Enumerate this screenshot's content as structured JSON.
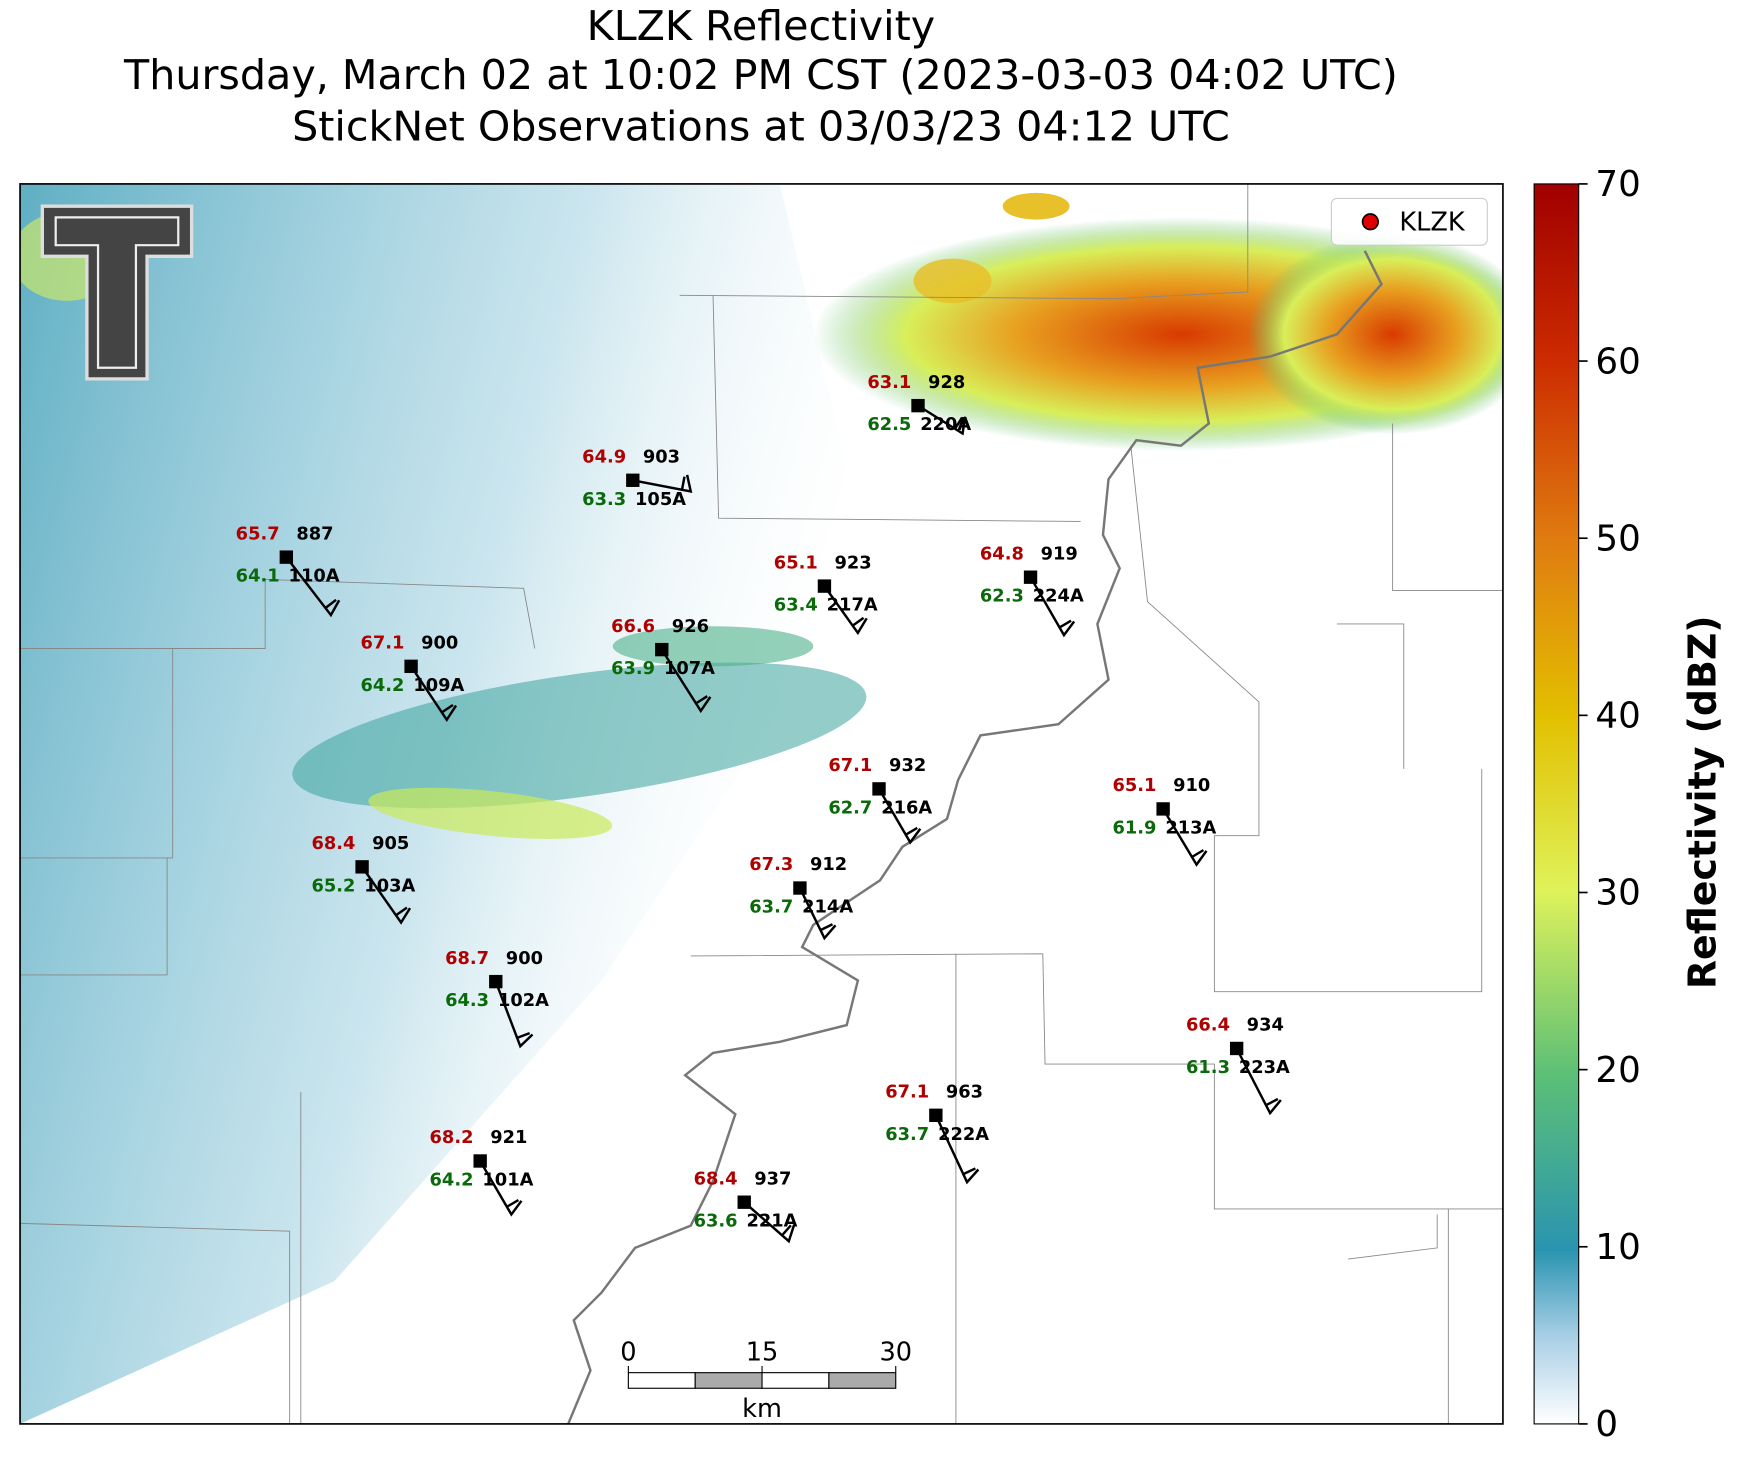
{
  "title": [
    "KLZK Reflectivity",
    "Thursday, March 02 at 10:02 PM CST (2023-03-03 04:02 UTC)",
    "StickNet Observations at 03/03/23 04:12 UTC"
  ],
  "legend": {
    "label": "KLZK"
  },
  "colorbar": {
    "label": "Reflectivity (dBZ)",
    "lim": [
      0,
      70
    ],
    "ticks": [
      0,
      10,
      20,
      30,
      40,
      50,
      60,
      70
    ]
  },
  "scalebar": {
    "ticks": [
      0,
      15,
      30
    ],
    "unit": "km"
  },
  "stations": [
    {
      "temp": 63.1,
      "dewpoint": 62.5,
      "pressure": 928,
      "id": "220A"
    },
    {
      "temp": 64.9,
      "dewpoint": 63.3,
      "pressure": 903,
      "id": "105A"
    },
    {
      "temp": 65.7,
      "dewpoint": 64.1,
      "pressure": 887,
      "id": "110A"
    },
    {
      "temp": 65.1,
      "dewpoint": 63.4,
      "pressure": 923,
      "id": "217A"
    },
    {
      "temp": 64.8,
      "dewpoint": 62.3,
      "pressure": 919,
      "id": "224A"
    },
    {
      "temp": 67.1,
      "dewpoint": 64.2,
      "pressure": 900,
      "id": "109A"
    },
    {
      "temp": 66.6,
      "dewpoint": 63.9,
      "pressure": 926,
      "id": "107A"
    },
    {
      "temp": 67.1,
      "dewpoint": 62.7,
      "pressure": 932,
      "id": "216A"
    },
    {
      "temp": 65.1,
      "dewpoint": 61.9,
      "pressure": 910,
      "id": "213A"
    },
    {
      "temp": 68.4,
      "dewpoint": 65.2,
      "pressure": 905,
      "id": "103A"
    },
    {
      "temp": 67.3,
      "dewpoint": 63.7,
      "pressure": 912,
      "id": "214A"
    },
    {
      "temp": 68.7,
      "dewpoint": 64.3,
      "pressure": 900,
      "id": "102A"
    },
    {
      "temp": 66.4,
      "dewpoint": 61.3,
      "pressure": 934,
      "id": "223A"
    },
    {
      "temp": 67.1,
      "dewpoint": 63.7,
      "pressure": 963,
      "id": "222A"
    },
    {
      "temp": 68.2,
      "dewpoint": 64.2,
      "pressure": 921,
      "id": "101A"
    },
    {
      "temp": 68.4,
      "dewpoint": 63.6,
      "pressure": 937,
      "id": "221A"
    }
  ]
}
